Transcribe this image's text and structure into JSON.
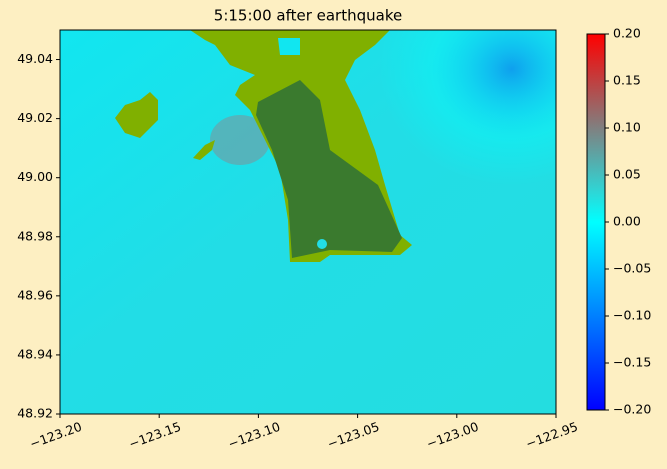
{
  "chart_data": {
    "type": "heatmap",
    "title": "5:15:00 after earthquake",
    "xlim": [
      -123.2,
      -122.95
    ],
    "xticks": [
      {
        "value": -123.2,
        "label": "−123.20"
      },
      {
        "value": -123.15,
        "label": "−123.15"
      },
      {
        "value": -123.1,
        "label": "−123.10"
      },
      {
        "value": -123.05,
        "label": "−123.05"
      },
      {
        "value": -123.0,
        "label": "−123.00"
      },
      {
        "value": -122.95,
        "label": "−122.95"
      }
    ],
    "ylim": [
      48.92,
      49.05
    ],
    "yticks": [
      48.92,
      48.94,
      48.96,
      48.98,
      {
        "value": 49.0,
        "label": "49.00"
      },
      49.02,
      49.04
    ],
    "colorbar": {
      "lim": [
        -0.2,
        0.2
      ],
      "ticks": [
        {
          "value": 0.2,
          "label": "0.20"
        },
        {
          "value": 0.15,
          "label": "0.15"
        },
        {
          "value": 0.1,
          "label": "0.10"
        },
        {
          "value": 0.05,
          "label": "0.05"
        },
        {
          "value": 0.0,
          "label": "0.00"
        },
        {
          "value": -0.05,
          "label": "−0.05"
        },
        {
          "value": -0.1,
          "label": "−0.10"
        },
        {
          "value": -0.15,
          "label": "−0.15"
        },
        {
          "value": -0.2,
          "label": "−0.20"
        }
      ]
    }
  }
}
